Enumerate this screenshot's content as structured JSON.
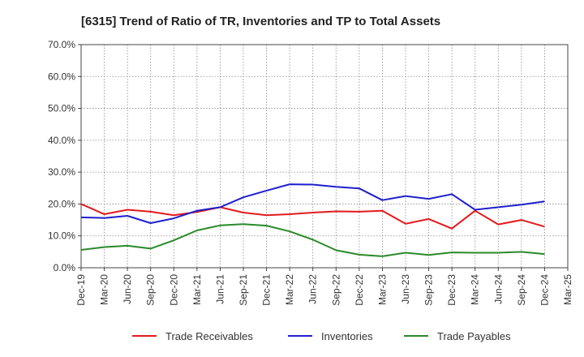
{
  "chart_data": {
    "type": "line",
    "title": "[6315]  Trend of Ratio of TR, Inventories and TP to Total Assets",
    "xlabel": "",
    "ylabel": "",
    "ylim": [
      0,
      70
    ],
    "ytick_values": [
      0,
      10,
      20,
      30,
      40,
      50,
      60,
      70
    ],
    "ytick_labels": [
      "0.0%",
      "10.0%",
      "20.0%",
      "30.0%",
      "40.0%",
      "50.0%",
      "60.0%",
      "70.0%"
    ],
    "categories": [
      "Dec-19",
      "Mar-20",
      "Jun-20",
      "Sep-20",
      "Dec-20",
      "Mar-21",
      "Jun-21",
      "Sep-21",
      "Dec-21",
      "Mar-22",
      "Jun-22",
      "Sep-22",
      "Dec-22",
      "Mar-23",
      "Jun-23",
      "Sep-23",
      "Dec-23",
      "Mar-24",
      "Jun-24",
      "Sep-24",
      "Dec-24",
      "Mar-25"
    ],
    "grid": true,
    "legend_position": "bottom",
    "series": [
      {
        "name": "Trade Receivables",
        "color": "#e31a1c",
        "values": [
          20.0,
          16.8,
          18.2,
          17.6,
          16.5,
          17.5,
          19.0,
          17.3,
          16.5,
          16.8,
          17.3,
          17.7,
          17.6,
          17.9,
          13.8,
          15.3,
          12.3,
          17.9,
          13.6,
          15.0,
          12.9,
          null
        ]
      },
      {
        "name": "Inventories",
        "color": "#1f1fcc",
        "values": [
          15.8,
          15.6,
          16.3,
          14.0,
          15.5,
          17.9,
          19.0,
          22.1,
          24.2,
          26.2,
          26.1,
          25.4,
          24.9,
          21.2,
          22.5,
          21.6,
          23.1,
          18.2,
          19.0,
          19.8,
          20.8,
          null
        ]
      },
      {
        "name": "Trade Payables",
        "color": "#2a8a2a",
        "values": [
          5.6,
          6.5,
          6.9,
          6.0,
          8.6,
          11.7,
          13.3,
          13.7,
          13.2,
          11.4,
          8.8,
          5.5,
          4.1,
          3.6,
          4.7,
          4.0,
          4.8,
          4.7,
          4.7,
          5.0,
          4.3,
          null
        ]
      }
    ]
  }
}
